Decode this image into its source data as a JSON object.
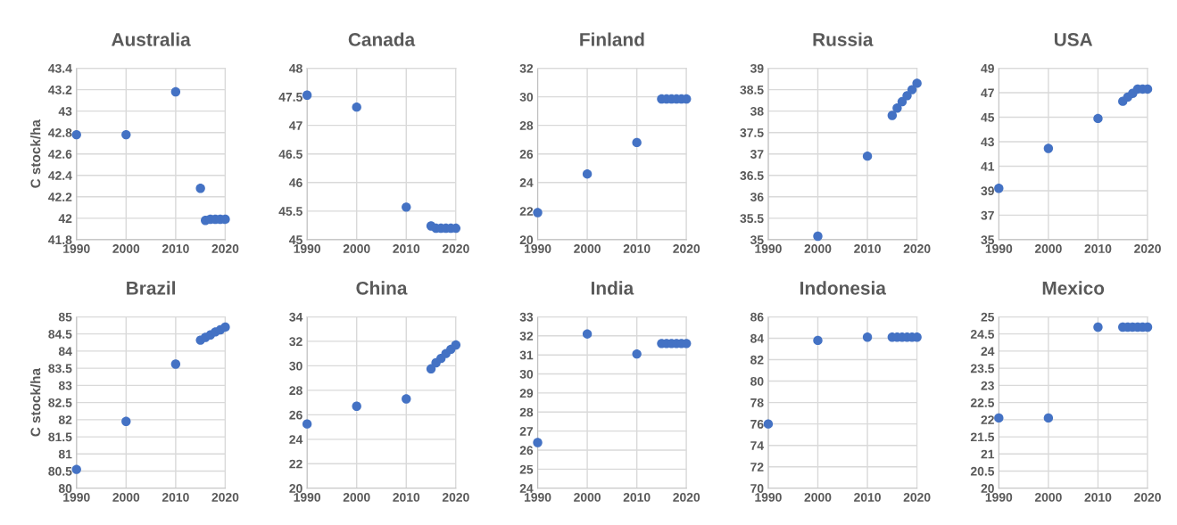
{
  "chart_data": [
    {
      "type": "scatter",
      "title": "Australia",
      "ylabel": "C stock/ha",
      "x": [
        1990,
        2000,
        2010,
        2015,
        2016,
        2017,
        2018,
        2019,
        2020
      ],
      "series": [
        {
          "color": "#4472c4",
          "values": [
            42.78,
            42.78,
            43.18,
            42.28,
            41.98,
            41.99,
            41.99,
            41.99,
            41.99
          ]
        }
      ],
      "xlim": [
        1990,
        2020
      ],
      "xticks": [
        1990,
        2000,
        2010,
        2020
      ],
      "ylim": [
        41.8,
        43.4
      ],
      "yticks": [
        41.8,
        42,
        42.2,
        42.4,
        42.6,
        42.8,
        43,
        43.2,
        43.4
      ],
      "grid": true,
      "marker": "circle"
    },
    {
      "type": "scatter",
      "title": "Canada",
      "x": [
        1990,
        2000,
        2010,
        2015,
        2016,
        2017,
        2018,
        2019,
        2020
      ],
      "series": [
        {
          "color": "#4472c4",
          "values": [
            47.53,
            47.32,
            45.57,
            45.24,
            45.2,
            45.2,
            45.2,
            45.2,
            45.2
          ]
        }
      ],
      "xlim": [
        1990,
        2020
      ],
      "xticks": [
        1990,
        2000,
        2010,
        2020
      ],
      "ylim": [
        45,
        48
      ],
      "yticks": [
        45,
        45.5,
        46,
        46.5,
        47,
        47.5,
        48
      ],
      "grid": true,
      "marker": "circle"
    },
    {
      "type": "scatter",
      "title": "Finland",
      "x": [
        1990,
        2000,
        2010,
        2015,
        2016,
        2017,
        2018,
        2019,
        2020
      ],
      "series": [
        {
          "color": "#4472c4",
          "values": [
            21.9,
            24.6,
            26.8,
            29.85,
            29.85,
            29.85,
            29.85,
            29.85,
            29.85
          ]
        }
      ],
      "xlim": [
        1990,
        2020
      ],
      "xticks": [
        1990,
        2000,
        2010,
        2020
      ],
      "ylim": [
        20,
        32
      ],
      "yticks": [
        20,
        22,
        24,
        26,
        28,
        30,
        32
      ],
      "grid": true,
      "marker": "circle"
    },
    {
      "type": "scatter",
      "title": "Russia",
      "x": [
        2000,
        2010,
        2015,
        2016,
        2017,
        2018,
        2019,
        2020
      ],
      "series": [
        {
          "color": "#4472c4",
          "values": [
            35.08,
            36.95,
            37.9,
            38.07,
            38.22,
            38.36,
            38.5,
            38.65
          ]
        }
      ],
      "xlim": [
        1990,
        2020
      ],
      "xticks": [
        1990,
        2000,
        2010,
        2020
      ],
      "ylim": [
        35,
        39
      ],
      "yticks": [
        35,
        35.5,
        36,
        36.5,
        37,
        37.5,
        38,
        38.5,
        39
      ],
      "grid": true,
      "marker": "circle"
    },
    {
      "type": "scatter",
      "title": "USA",
      "x": [
        1990,
        2000,
        2010,
        2015,
        2016,
        2017,
        2018,
        2019,
        2020
      ],
      "series": [
        {
          "color": "#4472c4",
          "values": [
            39.2,
            42.45,
            44.9,
            46.3,
            46.65,
            46.95,
            47.3,
            47.3,
            47.3
          ]
        }
      ],
      "xlim": [
        1990,
        2020
      ],
      "xticks": [
        1990,
        2000,
        2010,
        2020
      ],
      "ylim": [
        35,
        49
      ],
      "yticks": [
        35,
        37,
        39,
        41,
        43,
        45,
        47,
        49
      ],
      "grid": true,
      "marker": "circle"
    },
    {
      "type": "scatter",
      "title": "Brazil",
      "ylabel": "C stock/ha",
      "x": [
        1990,
        2000,
        2010,
        2015,
        2016,
        2017,
        2018,
        2019,
        2020
      ],
      "series": [
        {
          "color": "#4472c4",
          "values": [
            80.55,
            81.95,
            83.62,
            84.32,
            84.4,
            84.47,
            84.56,
            84.62,
            84.7
          ]
        }
      ],
      "xlim": [
        1990,
        2020
      ],
      "xticks": [
        1990,
        2000,
        2010,
        2020
      ],
      "ylim": [
        80,
        85
      ],
      "yticks": [
        80,
        80.5,
        81,
        81.5,
        82,
        82.5,
        83,
        83.5,
        84,
        84.5,
        85
      ],
      "grid": true,
      "marker": "circle"
    },
    {
      "type": "scatter",
      "title": "China",
      "x": [
        1990,
        2000,
        2010,
        2015,
        2016,
        2017,
        2018,
        2019,
        2020
      ],
      "series": [
        {
          "color": "#4472c4",
          "values": [
            25.25,
            26.7,
            27.3,
            29.75,
            30.25,
            30.6,
            31.0,
            31.35,
            31.7
          ]
        }
      ],
      "xlim": [
        1990,
        2020
      ],
      "xticks": [
        1990,
        2000,
        2010,
        2020
      ],
      "ylim": [
        20,
        34
      ],
      "yticks": [
        20,
        22,
        24,
        26,
        28,
        30,
        32,
        34
      ],
      "grid": true,
      "marker": "circle"
    },
    {
      "type": "scatter",
      "title": "India",
      "x": [
        1990,
        2000,
        2010,
        2015,
        2016,
        2017,
        2018,
        2019,
        2020
      ],
      "series": [
        {
          "color": "#4472c4",
          "values": [
            26.4,
            32.1,
            31.05,
            31.6,
            31.6,
            31.6,
            31.6,
            31.6,
            31.6
          ]
        }
      ],
      "xlim": [
        1990,
        2020
      ],
      "xticks": [
        1990,
        2000,
        2010,
        2020
      ],
      "ylim": [
        24,
        33
      ],
      "yticks": [
        24,
        25,
        26,
        27,
        28,
        29,
        30,
        31,
        32,
        33
      ],
      "grid": true,
      "marker": "circle"
    },
    {
      "type": "scatter",
      "title": "Indonesia",
      "x": [
        1990,
        2000,
        2010,
        2015,
        2016,
        2017,
        2018,
        2019,
        2020
      ],
      "series": [
        {
          "color": "#4472c4",
          "values": [
            76.0,
            83.8,
            84.1,
            84.1,
            84.1,
            84.1,
            84.1,
            84.1,
            84.1
          ]
        }
      ],
      "xlim": [
        1990,
        2020
      ],
      "xticks": [
        1990,
        2000,
        2010,
        2020
      ],
      "ylim": [
        70,
        86
      ],
      "yticks": [
        70,
        72,
        74,
        76,
        78,
        80,
        82,
        84,
        86
      ],
      "grid": true,
      "marker": "circle"
    },
    {
      "type": "scatter",
      "title": "Mexico",
      "x": [
        1990,
        2000,
        2010,
        2015,
        2016,
        2017,
        2018,
        2019,
        2020
      ],
      "series": [
        {
          "color": "#4472c4",
          "values": [
            22.05,
            22.05,
            24.7,
            24.7,
            24.7,
            24.7,
            24.7,
            24.7,
            24.7
          ]
        }
      ],
      "xlim": [
        1990,
        2020
      ],
      "xticks": [
        1990,
        2000,
        2010,
        2020
      ],
      "ylim": [
        20,
        25
      ],
      "yticks": [
        20,
        20.5,
        21,
        21.5,
        22,
        22.5,
        23,
        23.5,
        24,
        24.5,
        25
      ],
      "grid": true,
      "marker": "circle"
    }
  ]
}
